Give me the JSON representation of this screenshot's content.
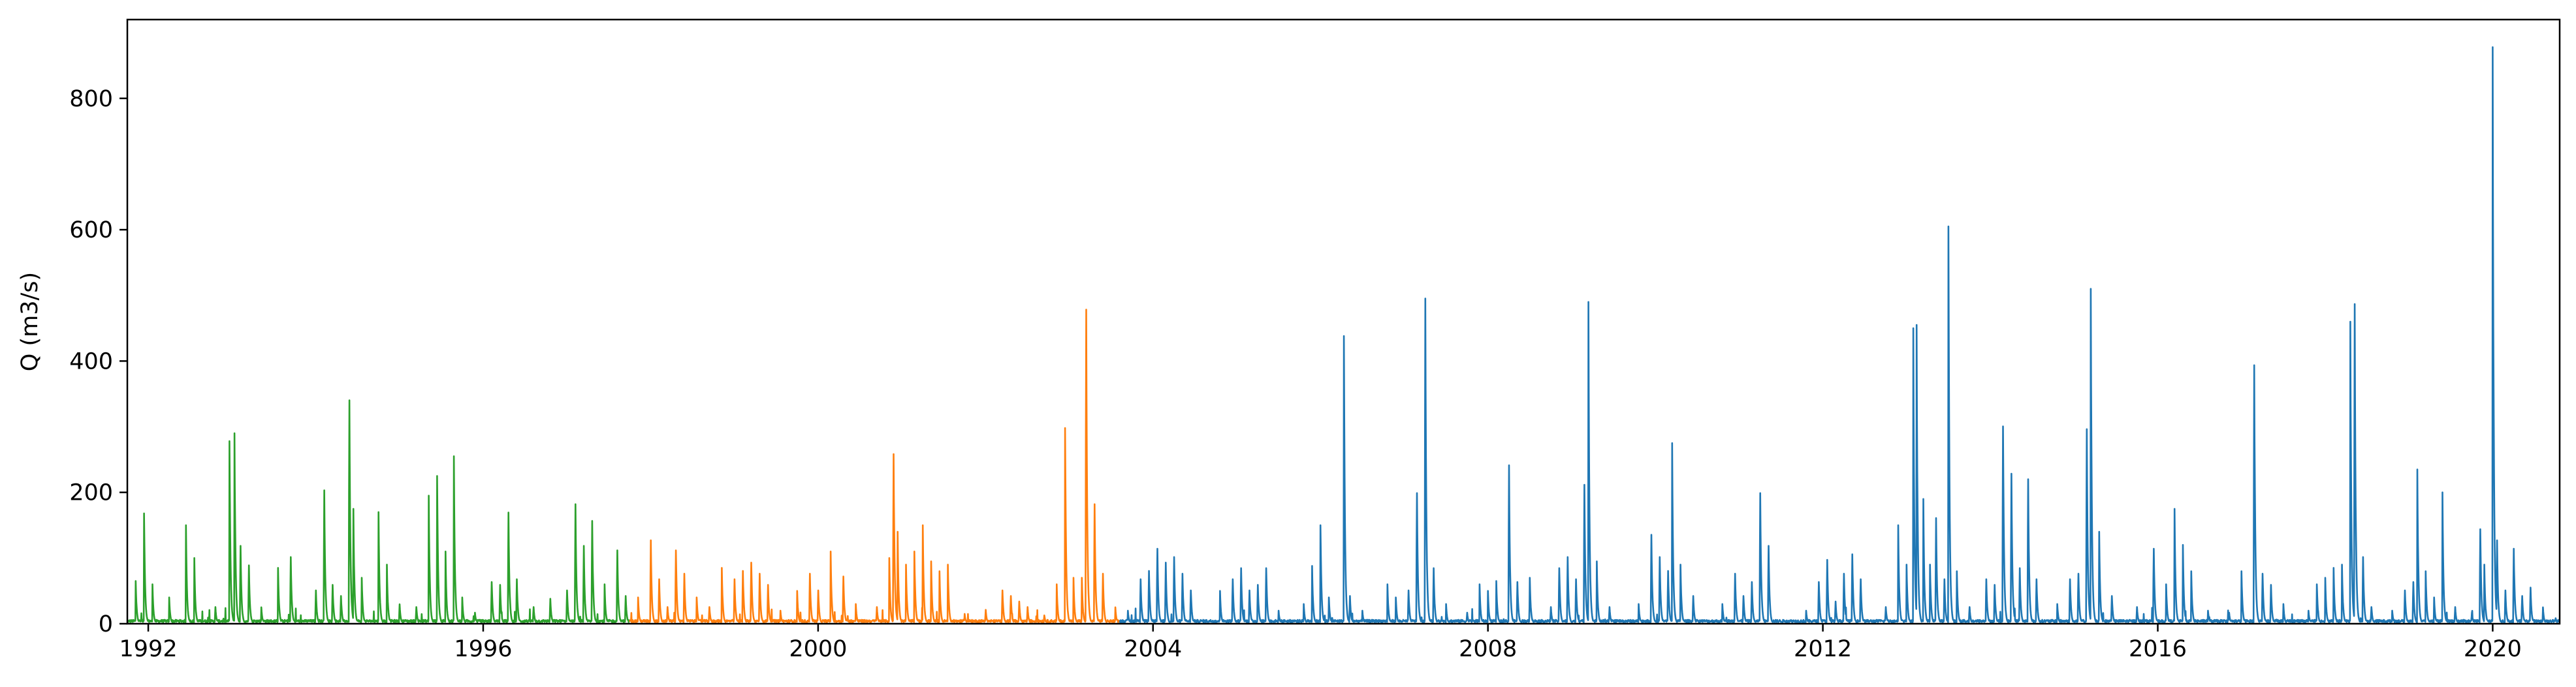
{
  "chart_data": {
    "type": "line",
    "title": "",
    "xlabel": "",
    "ylabel": "Q (m3/s)",
    "xlim": [
      1991.75,
      2020.8
    ],
    "ylim": [
      0,
      920
    ],
    "grid": false,
    "legend": "none",
    "x_ticks": [
      {
        "value": 1992,
        "label": "1992"
      },
      {
        "value": 1996,
        "label": "1996"
      },
      {
        "value": 2000,
        "label": "2000"
      },
      {
        "value": 2004,
        "label": "2004"
      },
      {
        "value": 2008,
        "label": "2008"
      },
      {
        "value": 2012,
        "label": "2012"
      },
      {
        "value": 2016,
        "label": "2016"
      },
      {
        "value": 2020,
        "label": "2020"
      }
    ],
    "y_ticks": [
      {
        "value": 0,
        "label": "0"
      },
      {
        "value": 200,
        "label": "200"
      },
      {
        "value": 400,
        "label": "400"
      },
      {
        "value": 600,
        "label": "600"
      },
      {
        "value": 800,
        "label": "800"
      }
    ],
    "series": [
      {
        "color": "#2ca02c",
        "x_range": [
          1991.75,
          1997.75
        ],
        "peaks": [
          [
            1991.85,
            65
          ],
          [
            1991.95,
            168
          ],
          [
            1992.05,
            60
          ],
          [
            1992.25,
            40
          ],
          [
            1992.45,
            150
          ],
          [
            1992.55,
            100
          ],
          [
            1992.8,
            30
          ],
          [
            1992.97,
            278
          ],
          [
            1993.03,
            290
          ],
          [
            1993.1,
            140
          ],
          [
            1993.2,
            105
          ],
          [
            1993.35,
            25
          ],
          [
            1993.55,
            85
          ],
          [
            1993.7,
            120
          ],
          [
            1994.0,
            60
          ],
          [
            1994.1,
            240
          ],
          [
            1994.2,
            70
          ],
          [
            1994.3,
            50
          ],
          [
            1994.4,
            402
          ],
          [
            1994.45,
            175
          ],
          [
            1994.55,
            70
          ],
          [
            1994.75,
            170
          ],
          [
            1994.85,
            90
          ],
          [
            1995.0,
            35
          ],
          [
            1995.2,
            30
          ],
          [
            1995.35,
            195
          ],
          [
            1995.45,
            225
          ],
          [
            1995.55,
            110
          ],
          [
            1995.65,
            255
          ],
          [
            1995.75,
            40
          ],
          [
            1995.9,
            20
          ],
          [
            1996.1,
            75
          ],
          [
            1996.2,
            70
          ],
          [
            1996.3,
            200
          ],
          [
            1996.4,
            80
          ],
          [
            1996.6,
            30
          ],
          [
            1996.8,
            45
          ],
          [
            1997.0,
            60
          ],
          [
            1997.1,
            215
          ],
          [
            1997.2,
            140
          ],
          [
            1997.3,
            185
          ],
          [
            1997.45,
            60
          ],
          [
            1997.6,
            132
          ],
          [
            1997.7,
            50
          ]
        ]
      },
      {
        "color": "#ff7f0e",
        "x_range": [
          1997.75,
          2003.6
        ],
        "peaks": [
          [
            1997.85,
            40
          ],
          [
            1998.0,
            150
          ],
          [
            1998.1,
            80
          ],
          [
            1998.2,
            30
          ],
          [
            1998.3,
            132
          ],
          [
            1998.4,
            90
          ],
          [
            1998.55,
            40
          ],
          [
            1998.7,
            30
          ],
          [
            1998.85,
            85
          ],
          [
            1999.0,
            80
          ],
          [
            1999.1,
            95
          ],
          [
            1999.2,
            110
          ],
          [
            1999.3,
            90
          ],
          [
            1999.4,
            70
          ],
          [
            1999.55,
            20
          ],
          [
            1999.75,
            50
          ],
          [
            1999.9,
            90
          ],
          [
            2000.0,
            60
          ],
          [
            2000.15,
            110
          ],
          [
            2000.3,
            85
          ],
          [
            2000.45,
            30
          ],
          [
            2000.7,
            30
          ],
          [
            2000.85,
            100
          ],
          [
            2000.9,
            305
          ],
          [
            2000.95,
            140
          ],
          [
            2001.05,
            90
          ],
          [
            2001.15,
            110
          ],
          [
            2001.25,
            150
          ],
          [
            2001.35,
            95
          ],
          [
            2001.45,
            80
          ],
          [
            2001.55,
            90
          ],
          [
            2001.75,
            15
          ],
          [
            2002.0,
            25
          ],
          [
            2002.2,
            60
          ],
          [
            2002.3,
            50
          ],
          [
            2002.4,
            40
          ],
          [
            2002.5,
            30
          ],
          [
            2002.7,
            15
          ],
          [
            2002.85,
            60
          ],
          [
            2002.95,
            298
          ],
          [
            2003.05,
            70
          ],
          [
            2003.15,
            70
          ],
          [
            2003.2,
            565
          ],
          [
            2003.3,
            215
          ],
          [
            2003.4,
            90
          ],
          [
            2003.55,
            25
          ]
        ]
      },
      {
        "color": "#1f77b4",
        "x_range": [
          2003.6,
          2020.8
        ],
        "peaks": [
          [
            2003.7,
            20
          ],
          [
            2003.85,
            80
          ],
          [
            2003.95,
            95
          ],
          [
            2004.05,
            135
          ],
          [
            2004.15,
            110
          ],
          [
            2004.25,
            120
          ],
          [
            2004.35,
            90
          ],
          [
            2004.45,
            60
          ],
          [
            2004.8,
            50
          ],
          [
            2004.95,
            80
          ],
          [
            2005.05,
            100
          ],
          [
            2005.15,
            60
          ],
          [
            2005.25,
            70
          ],
          [
            2005.35,
            100
          ],
          [
            2005.5,
            20
          ],
          [
            2005.8,
            30
          ],
          [
            2005.9,
            88
          ],
          [
            2006.0,
            150
          ],
          [
            2006.1,
            40
          ],
          [
            2006.28,
            438
          ],
          [
            2006.35,
            50
          ],
          [
            2006.5,
            20
          ],
          [
            2006.8,
            60
          ],
          [
            2006.9,
            40
          ],
          [
            2007.05,
            60
          ],
          [
            2007.15,
            235
          ],
          [
            2007.25,
            585
          ],
          [
            2007.35,
            100
          ],
          [
            2007.5,
            30
          ],
          [
            2007.75,
            20
          ],
          [
            2007.9,
            60
          ],
          [
            2008.0,
            50
          ],
          [
            2008.1,
            65
          ],
          [
            2008.25,
            285
          ],
          [
            2008.35,
            75
          ],
          [
            2008.5,
            70
          ],
          [
            2008.75,
            30
          ],
          [
            2008.85,
            100
          ],
          [
            2008.95,
            120
          ],
          [
            2009.05,
            80
          ],
          [
            2009.15,
            250
          ],
          [
            2009.2,
            490
          ],
          [
            2009.3,
            95
          ],
          [
            2009.45,
            30
          ],
          [
            2009.8,
            30
          ],
          [
            2009.95,
            160
          ],
          [
            2010.05,
            120
          ],
          [
            2010.15,
            95
          ],
          [
            2010.2,
            275
          ],
          [
            2010.3,
            90
          ],
          [
            2010.45,
            50
          ],
          [
            2010.8,
            30
          ],
          [
            2010.95,
            90
          ],
          [
            2011.05,
            50
          ],
          [
            2011.15,
            75
          ],
          [
            2011.25,
            235
          ],
          [
            2011.35,
            140
          ],
          [
            2011.8,
            20
          ],
          [
            2011.95,
            75
          ],
          [
            2012.05,
            115
          ],
          [
            2012.15,
            40
          ],
          [
            2012.25,
            90
          ],
          [
            2012.35,
            125
          ],
          [
            2012.45,
            80
          ],
          [
            2012.75,
            30
          ],
          [
            2012.9,
            150
          ],
          [
            2013.0,
            90
          ],
          [
            2013.08,
            450
          ],
          [
            2013.12,
            455
          ],
          [
            2013.2,
            190
          ],
          [
            2013.28,
            90
          ],
          [
            2013.35,
            190
          ],
          [
            2013.45,
            80
          ],
          [
            2013.5,
            605
          ],
          [
            2013.6,
            80
          ],
          [
            2013.75,
            30
          ],
          [
            2013.95,
            80
          ],
          [
            2014.05,
            70
          ],
          [
            2014.15,
            355
          ],
          [
            2014.25,
            270
          ],
          [
            2014.35,
            100
          ],
          [
            2014.45,
            260
          ],
          [
            2014.55,
            80
          ],
          [
            2014.8,
            30
          ],
          [
            2014.95,
            80
          ],
          [
            2015.05,
            90
          ],
          [
            2015.15,
            350
          ],
          [
            2015.2,
            510
          ],
          [
            2015.3,
            140
          ],
          [
            2015.45,
            50
          ],
          [
            2015.75,
            30
          ],
          [
            2015.95,
            135
          ],
          [
            2016.1,
            60
          ],
          [
            2016.2,
            175
          ],
          [
            2016.3,
            120
          ],
          [
            2016.4,
            80
          ],
          [
            2016.6,
            20
          ],
          [
            2016.85,
            20
          ],
          [
            2017.0,
            80
          ],
          [
            2017.15,
            465
          ],
          [
            2017.25,
            90
          ],
          [
            2017.35,
            70
          ],
          [
            2017.5,
            30
          ],
          [
            2017.8,
            20
          ],
          [
            2017.9,
            60
          ],
          [
            2018.0,
            70
          ],
          [
            2018.1,
            85
          ],
          [
            2018.2,
            90
          ],
          [
            2018.3,
            460
          ],
          [
            2018.35,
            575
          ],
          [
            2018.45,
            120
          ],
          [
            2018.55,
            30
          ],
          [
            2018.8,
            20
          ],
          [
            2018.95,
            60
          ],
          [
            2019.05,
            75
          ],
          [
            2019.1,
            235
          ],
          [
            2019.2,
            80
          ],
          [
            2019.3,
            40
          ],
          [
            2019.4,
            200
          ],
          [
            2019.55,
            30
          ],
          [
            2019.75,
            20
          ],
          [
            2019.85,
            170
          ],
          [
            2019.9,
            90
          ],
          [
            2020.0,
            878
          ],
          [
            2020.05,
            150
          ],
          [
            2020.15,
            60
          ],
          [
            2020.25,
            135
          ],
          [
            2020.35,
            50
          ],
          [
            2020.45,
            65
          ],
          [
            2020.6,
            25
          ],
          [
            2020.75,
            10
          ]
        ]
      }
    ]
  }
}
